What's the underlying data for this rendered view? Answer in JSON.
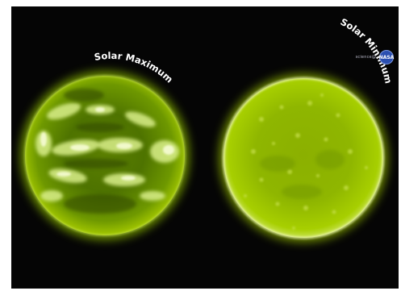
{
  "labels": {
    "left": "Solar Maximum",
    "right": "Solar Minimum"
  },
  "logo": {
    "caption": "science@",
    "mark": "NASA"
  },
  "colors": {
    "background": "#050505",
    "sun_core": "#9fc800",
    "sun_glow": "#5f8a00",
    "label": "#ffffff"
  }
}
